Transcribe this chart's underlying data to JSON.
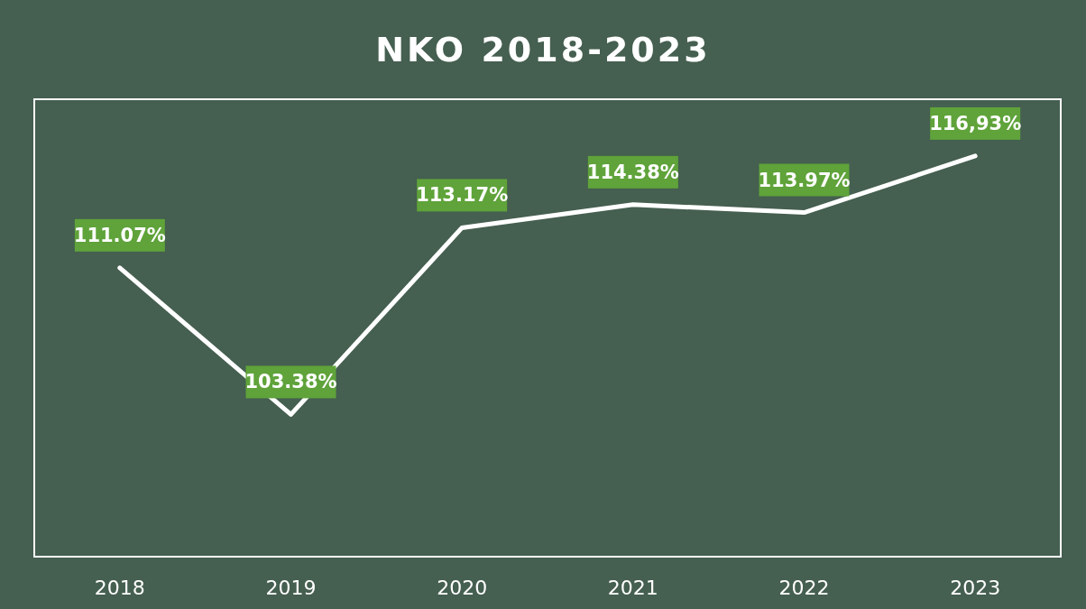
{
  "chart_data": {
    "type": "line",
    "title": "NKO 2018-2023",
    "categories": [
      "2018",
      "2019",
      "2020",
      "2021",
      "2022",
      "2023"
    ],
    "series": [
      {
        "color": "#ffffff",
        "values": [
          111.07,
          103.38,
          113.17,
          114.38,
          113.97,
          116.93
        ],
        "value_labels": [
          "111.07%",
          "103.38%",
          "113.17%",
          "114.38%",
          "113.97%",
          "116,93%"
        ]
      }
    ],
    "marker": "none",
    "grid": false
  }
}
